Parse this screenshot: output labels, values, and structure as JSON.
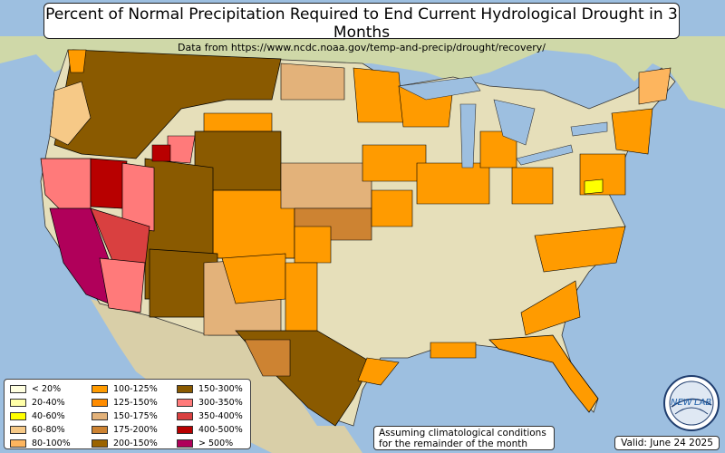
{
  "title": "Percent of Normal Precipitation Required to End Current Hydrological Drought in 3 Months",
  "subtitle": "Data from https://www.ncdc.noaa.gov/temp-and-precip/drought/recovery/",
  "note_line1": "Assuming climatological conditions",
  "note_line2": "for the remainder of the month",
  "valid": "Valid: June 24 2025",
  "logo_text_left": "NEW",
  "logo_text_right": "LAB",
  "legend": [
    {
      "label": "< 20%",
      "color": "#ffffe0"
    },
    {
      "label": "20-40%",
      "color": "#ffffa8"
    },
    {
      "label": "40-60%",
      "color": "#ffff00"
    },
    {
      "label": "60-80%",
      "color": "#f6c987"
    },
    {
      "label": "80-100%",
      "color": "#fdb55e"
    },
    {
      "label": "100-125%",
      "color": "#ff9b00"
    },
    {
      "label": "125-150%",
      "color": "#ff8c00"
    },
    {
      "label": "150-175%",
      "color": "#e3b27a"
    },
    {
      "label": "175-200%",
      "color": "#cd8332"
    },
    {
      "label": "200-150%",
      "color": "#9b6400"
    },
    {
      "label": "150-300%",
      "color": "#8a5a00"
    },
    {
      "label": "300-350%",
      "color": "#ff7a7a"
    },
    {
      "label": "350-400%",
      "color": "#d94040"
    },
    {
      "label": "400-500%",
      "color": "#b80000"
    },
    {
      "label": "> 500%",
      "color": "#b0005a"
    }
  ],
  "colors": {
    "ocean": "#9dbfe0",
    "land": "#e9e2c2",
    "land_green": "#c9d7a2",
    "border": "#000000"
  }
}
